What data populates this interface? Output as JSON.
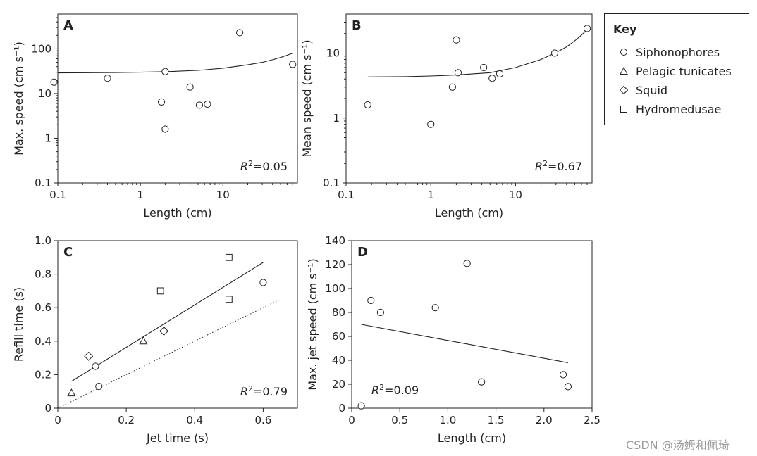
{
  "watermark": "CSDN @汤姆和佩琦",
  "key": {
    "title": "Key",
    "entries": [
      {
        "label": "Siphonophores",
        "marker": "circle"
      },
      {
        "label": "Pelagic tunicates",
        "marker": "triangle"
      },
      {
        "label": "Squid",
        "marker": "diamond"
      },
      {
        "label": "Hydromedusae",
        "marker": "square"
      }
    ]
  },
  "chart_data": [
    {
      "panel": "A",
      "type": "scatter",
      "xlabel": "Length (cm)",
      "ylabel": "Max. speed (cm s⁻¹)",
      "xscale": "log",
      "yscale": "log",
      "xlim": [
        0.1,
        80
      ],
      "ylim": [
        0.1,
        600
      ],
      "xticks": [
        0.1,
        1,
        10
      ],
      "xtick_labels": [
        "0.1",
        "1",
        "10"
      ],
      "yticks": [
        0.1,
        1,
        10,
        100
      ],
      "ytick_labels": [
        "0.1",
        "1",
        "10",
        "100"
      ],
      "r2_text": "=0.05",
      "series": [
        {
          "marker": "circle",
          "points": [
            [
              0.09,
              18
            ],
            [
              0.4,
              22
            ],
            [
              1.8,
              6.5
            ],
            [
              2.0,
              1.6
            ],
            [
              2.0,
              31
            ],
            [
              4.0,
              14
            ],
            [
              5.2,
              5.5
            ],
            [
              6.5,
              5.8
            ],
            [
              16,
              230
            ],
            [
              70,
              45
            ]
          ]
        }
      ],
      "fit": {
        "x": [
          0.1,
          0.5,
          1,
          2,
          5,
          10,
          20,
          30,
          40,
          50,
          60,
          70
        ],
        "y": [
          29,
          29.5,
          30,
          30.8,
          33,
          37,
          44,
          50,
          57,
          64,
          72,
          80
        ]
      }
    },
    {
      "panel": "B",
      "type": "scatter",
      "xlabel": "Length (cm)",
      "ylabel": "Mean speed (cm s⁻¹)",
      "xscale": "log",
      "yscale": "log",
      "xlim": [
        0.1,
        80
      ],
      "ylim": [
        0.1,
        40
      ],
      "xticks": [
        0.1,
        1,
        10
      ],
      "xtick_labels": [
        "0.1",
        "1",
        "10"
      ],
      "yticks": [
        0.1,
        1,
        10
      ],
      "ytick_labels": [
        "0.1",
        "1",
        "10"
      ],
      "r2_text": "=0.67",
      "series": [
        {
          "marker": "circle",
          "points": [
            [
              0.18,
              1.6
            ],
            [
              1.0,
              0.8
            ],
            [
              1.8,
              3.0
            ],
            [
              2.0,
              16
            ],
            [
              2.1,
              5.0
            ],
            [
              4.2,
              6.0
            ],
            [
              5.3,
              4.1
            ],
            [
              6.5,
              4.8
            ],
            [
              29,
              10
            ],
            [
              70,
              24
            ]
          ]
        }
      ],
      "fit": {
        "x": [
          0.18,
          0.5,
          1,
          2,
          5,
          10,
          20,
          30,
          40,
          50,
          60,
          70
        ],
        "y": [
          4.3,
          4.35,
          4.45,
          4.6,
          5.0,
          6.0,
          8.0,
          10.2,
          12.5,
          15.5,
          19,
          23
        ]
      }
    },
    {
      "panel": "C",
      "type": "scatter",
      "xlabel": "Jet time (s)",
      "ylabel": "Refill time (s)",
      "xlim": [
        0,
        0.7
      ],
      "ylim": [
        0,
        1.0
      ],
      "xticks": [
        0,
        0.2,
        0.4,
        0.6
      ],
      "xtick_labels": [
        "0",
        "0.2",
        "0.4",
        "0.6"
      ],
      "yticks": [
        0,
        0.2,
        0.4,
        0.6,
        0.8,
        1.0
      ],
      "ytick_labels": [
        "0",
        "0.2",
        "0.4",
        "0.6",
        "0.8",
        "1.0"
      ],
      "r2_text": "=0.79",
      "series": [
        {
          "marker": "circle",
          "points": [
            [
              0.11,
              0.25
            ],
            [
              0.12,
              0.13
            ],
            [
              0.6,
              0.75
            ]
          ]
        },
        {
          "marker": "triangle",
          "points": [
            [
              0.04,
              0.09
            ],
            [
              0.25,
              0.4
            ]
          ]
        },
        {
          "marker": "diamond",
          "points": [
            [
              0.09,
              0.31
            ],
            [
              0.31,
              0.46
            ]
          ]
        },
        {
          "marker": "square",
          "points": [
            [
              0.3,
              0.7
            ],
            [
              0.5,
              0.9
            ],
            [
              0.5,
              0.65
            ]
          ]
        }
      ],
      "fit": {
        "x": [
          0.04,
          0.6
        ],
        "y": [
          0.16,
          0.87
        ]
      },
      "reference_line": {
        "x": [
          0,
          0.65
        ],
        "y": [
          0,
          0.65
        ]
      }
    },
    {
      "panel": "D",
      "type": "scatter",
      "xlabel": "Length (cm)",
      "ylabel": "Max. jet speed (cm s⁻¹)",
      "xlim": [
        0,
        2.5
      ],
      "ylim": [
        0,
        140
      ],
      "xticks": [
        0,
        0.5,
        1.0,
        1.5,
        2.0,
        2.5
      ],
      "xtick_labels": [
        "0",
        "0.5",
        "1.0",
        "1.5",
        "2.0",
        "2.5"
      ],
      "yticks": [
        0,
        20,
        40,
        60,
        80,
        100,
        120,
        140
      ],
      "ytick_labels": [
        "0",
        "20",
        "40",
        "60",
        "80",
        "100",
        "120",
        "140"
      ],
      "r2_text": "=0.09",
      "series": [
        {
          "marker": "circle",
          "points": [
            [
              0.1,
              2
            ],
            [
              0.2,
              90
            ],
            [
              0.3,
              80
            ],
            [
              0.87,
              84
            ],
            [
              1.2,
              121
            ],
            [
              1.35,
              22
            ],
            [
              2.2,
              28
            ],
            [
              2.25,
              18
            ]
          ]
        }
      ],
      "fit": {
        "x": [
          0.1,
          2.25
        ],
        "y": [
          70,
          38
        ]
      }
    }
  ]
}
